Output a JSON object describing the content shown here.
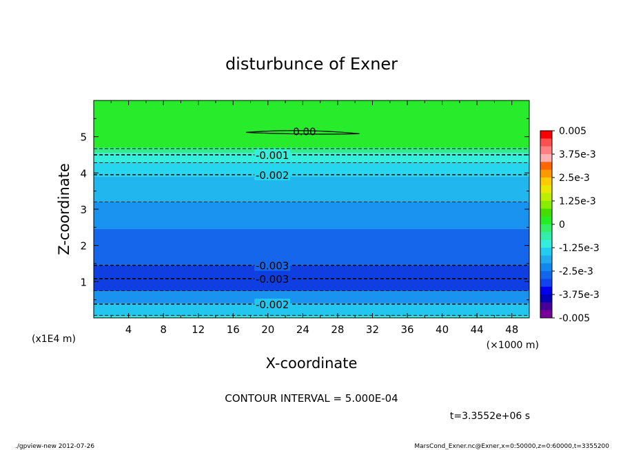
{
  "chart_data": {
    "type": "contour",
    "title": "disturbunce of Exner",
    "xlabel": "X-coordinate",
    "ylabel": "Z-coordinate",
    "x_unit": "(×1000 m)",
    "y_unit": "(x1E4 m)",
    "xlim": [
      0,
      50
    ],
    "ylim": [
      0,
      6
    ],
    "x_ticks": [
      4,
      8,
      12,
      16,
      20,
      24,
      28,
      32,
      36,
      40,
      44,
      48
    ],
    "y_ticks": [
      1,
      2,
      3,
      4,
      5
    ],
    "contour_interval_text": "CONTOUR INTERVAL = 5.000E-04",
    "time_text": "t=3.3552e+06 s",
    "footer_left": "./gpview-new  2012-07-26",
    "footer_right": "MarsCond_Exner.nc@Exner,x=0:50000,z=0:60000,t=3355200",
    "colorbar": {
      "range": [
        -0.005,
        0.005
      ],
      "labels": [
        "0.005",
        "3.75e-3",
        "2.5e-3",
        "1.25e-3",
        "0",
        "-1.25e-3",
        "-2.5e-3",
        "-3.75e-3",
        "-0.005"
      ],
      "colors": [
        "#ff0000",
        "#ff5050",
        "#ff8080",
        "#ffb0b0",
        "#ff6600",
        "#ff9900",
        "#ffcc00",
        "#e8e800",
        "#bbee00",
        "#88ee00",
        "#44dd00",
        "#22ee22",
        "#33ee66",
        "#33eeaa",
        "#33eedd",
        "#22ccee",
        "#22aaee",
        "#1188ee",
        "#1166ee",
        "#1144ee",
        "#0000ee",
        "#0000bb",
        "#440099",
        "#770099"
      ]
    },
    "bands": [
      {
        "z0": 4.7,
        "z1": 6.0,
        "color": "#27eb2b"
      },
      {
        "z0": 4.55,
        "z1": 4.7,
        "color": "#33eb88"
      },
      {
        "z0": 4.3,
        "z1": 4.55,
        "color": "#36efdb"
      },
      {
        "z0": 3.9,
        "z1": 4.3,
        "color": "#26d6ef"
      },
      {
        "z0": 3.2,
        "z1": 3.9,
        "color": "#22b6ef"
      },
      {
        "z0": 2.45,
        "z1": 3.2,
        "color": "#1a92ef"
      },
      {
        "z0": 1.45,
        "z1": 2.45,
        "color": "#1566ea"
      },
      {
        "z0": 0.75,
        "z1": 1.45,
        "color": "#0f3fe0"
      },
      {
        "z0": 0.4,
        "z1": 0.75,
        "color": "#1a92ef"
      },
      {
        "z0": 0.05,
        "z1": 0.4,
        "color": "#22c6ef"
      },
      {
        "z0": 0.0,
        "z1": 0.05,
        "color": "#30e6d6"
      }
    ],
    "contours": [
      {
        "z": 4.67,
        "label": "",
        "width": 0.8
      },
      {
        "z": 4.5,
        "label": "-0.001",
        "width": 1.4
      },
      {
        "z": 4.28,
        "label": "",
        "width": 0.8
      },
      {
        "z": 3.95,
        "label": "-0.002",
        "width": 1.4
      },
      {
        "z": 3.2,
        "label": "",
        "width": 0.8
      },
      {
        "z": 1.45,
        "label": "-0.003",
        "width": 1.4
      },
      {
        "z": 1.08,
        "label": "-0.003",
        "width": 1.4
      },
      {
        "z": 0.75,
        "label": "",
        "width": 0.8
      },
      {
        "z": 0.38,
        "label": "-0.002",
        "width": 1.4
      },
      {
        "z": 0.07,
        "label": "",
        "width": 0.8
      }
    ],
    "zero_contour": {
      "label": "0.00",
      "x0": 17.5,
      "x1": 30.5,
      "z": 5.12
    }
  }
}
